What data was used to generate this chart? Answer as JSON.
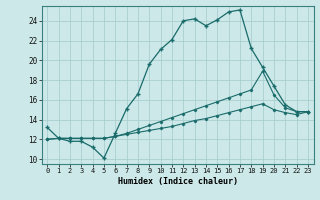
{
  "xlabel": "Humidex (Indice chaleur)",
  "bg_color": "#cce8e8",
  "grid_color": "#aacece",
  "line_color": "#1a6b6b",
  "xlim": [
    -0.5,
    23.5
  ],
  "ylim": [
    9.5,
    25.5
  ],
  "xticks": [
    0,
    1,
    2,
    3,
    4,
    5,
    6,
    7,
    8,
    9,
    10,
    11,
    12,
    13,
    14,
    15,
    16,
    17,
    18,
    19,
    20,
    21,
    22,
    23
  ],
  "yticks": [
    10,
    12,
    14,
    16,
    18,
    20,
    22,
    24
  ],
  "line1_x": [
    0,
    1,
    2,
    3,
    4,
    5,
    6,
    7,
    8,
    9,
    10,
    11,
    12,
    13,
    14,
    15,
    16,
    17,
    18,
    19,
    20,
    21,
    22,
    23
  ],
  "line1_y": [
    13.2,
    12.1,
    11.8,
    11.8,
    11.2,
    10.1,
    12.6,
    15.1,
    16.6,
    19.6,
    21.1,
    22.1,
    24.0,
    24.2,
    23.5,
    24.1,
    24.9,
    25.1,
    21.2,
    19.3,
    17.4,
    15.5,
    14.8,
    14.8
  ],
  "line2_x": [
    0,
    1,
    2,
    3,
    4,
    5,
    6,
    7,
    8,
    9,
    10,
    11,
    12,
    13,
    14,
    15,
    16,
    17,
    18,
    19,
    20,
    21,
    22,
    23
  ],
  "line2_y": [
    12.0,
    12.1,
    12.1,
    12.1,
    12.1,
    12.1,
    12.3,
    12.5,
    12.7,
    12.9,
    13.1,
    13.3,
    13.6,
    13.9,
    14.1,
    14.4,
    14.7,
    15.0,
    15.3,
    15.6,
    15.0,
    14.7,
    14.5,
    14.8
  ],
  "line3_x": [
    0,
    1,
    2,
    3,
    4,
    5,
    6,
    7,
    8,
    9,
    10,
    11,
    12,
    13,
    14,
    15,
    16,
    17,
    18,
    19,
    20,
    21,
    22,
    23
  ],
  "line3_y": [
    12.0,
    12.1,
    12.1,
    12.1,
    12.1,
    12.1,
    12.3,
    12.6,
    13.0,
    13.4,
    13.8,
    14.2,
    14.6,
    15.0,
    15.4,
    15.8,
    16.2,
    16.6,
    17.0,
    18.9,
    16.5,
    15.2,
    14.8,
    14.8
  ]
}
